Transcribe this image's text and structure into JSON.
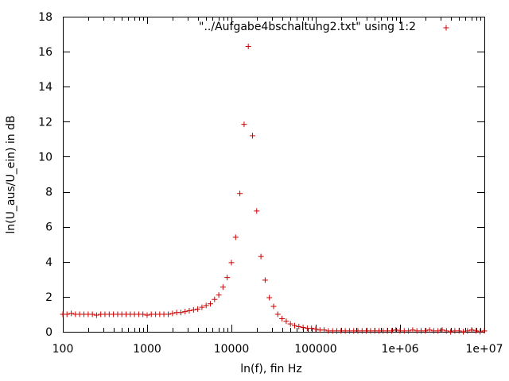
{
  "chart_data": {
    "type": "scatter",
    "title": "",
    "xlabel": "ln(f), fin Hz",
    "ylabel": "ln(U_aus/U_ein) in dB",
    "x_scale": "log",
    "xlim": [
      100,
      10000000
    ],
    "ylim": [
      0,
      18
    ],
    "x_ticks": [
      100,
      1000,
      10000,
      100000,
      1000000,
      10000000
    ],
    "x_tick_labels": [
      "100",
      "1000",
      "10000",
      "100000",
      "1e+06",
      "1e+07"
    ],
    "y_ticks": [
      0,
      2,
      4,
      6,
      8,
      10,
      12,
      14,
      16,
      18
    ],
    "y_tick_labels": [
      "0",
      "2",
      "4",
      "6",
      "8",
      "10",
      "12",
      "14",
      "16",
      "18"
    ],
    "grid": false,
    "legend_position": "top-right",
    "marker": "+",
    "series": [
      {
        "name": "\"../Aufgabe4bschaltung2.txt\" using 1:2",
        "color": "#cc0000",
        "points": [
          [
            100,
            1.0
          ],
          [
            112,
            1.0
          ],
          [
            126,
            1.05
          ],
          [
            141,
            1.0
          ],
          [
            158,
            1.0
          ],
          [
            178,
            1.0
          ],
          [
            200,
            1.0
          ],
          [
            224,
            1.0
          ],
          [
            251,
            0.95
          ],
          [
            282,
            1.0
          ],
          [
            316,
            1.0
          ],
          [
            355,
            1.0
          ],
          [
            398,
            1.0
          ],
          [
            447,
            1.0
          ],
          [
            501,
            1.0
          ],
          [
            562,
            1.0
          ],
          [
            631,
            1.0
          ],
          [
            708,
            1.0
          ],
          [
            794,
            1.0
          ],
          [
            891,
            1.0
          ],
          [
            1000,
            0.95
          ],
          [
            1120,
            1.0
          ],
          [
            1260,
            1.0
          ],
          [
            1410,
            1.0
          ],
          [
            1580,
            1.0
          ],
          [
            1780,
            1.0
          ],
          [
            2000,
            1.05
          ],
          [
            2240,
            1.1
          ],
          [
            2510,
            1.1
          ],
          [
            2820,
            1.15
          ],
          [
            3160,
            1.2
          ],
          [
            3550,
            1.25
          ],
          [
            3980,
            1.3
          ],
          [
            4470,
            1.4
          ],
          [
            5010,
            1.5
          ],
          [
            5620,
            1.6
          ],
          [
            6310,
            1.85
          ],
          [
            7080,
            2.1
          ],
          [
            7940,
            2.55
          ],
          [
            8910,
            3.1
          ],
          [
            10000,
            3.95
          ],
          [
            11220,
            5.4
          ],
          [
            12590,
            7.9
          ],
          [
            14130,
            11.85
          ],
          [
            15850,
            16.3
          ],
          [
            17780,
            11.2
          ],
          [
            19950,
            6.9
          ],
          [
            22390,
            4.3
          ],
          [
            25120,
            2.95
          ],
          [
            28180,
            1.95
          ],
          [
            31620,
            1.45
          ],
          [
            35480,
            1.0
          ],
          [
            39810,
            0.75
          ],
          [
            44670,
            0.6
          ],
          [
            50120,
            0.45
          ],
          [
            56230,
            0.35
          ],
          [
            63100,
            0.3
          ],
          [
            70790,
            0.25
          ],
          [
            79430,
            0.2
          ],
          [
            89130,
            0.2
          ],
          [
            100000,
            0.15
          ],
          [
            112200,
            0.1
          ],
          [
            125900,
            0.1
          ],
          [
            141300,
            0.05
          ],
          [
            158500,
            0.05
          ],
          [
            177800,
            0.05
          ],
          [
            199500,
            0.05
          ],
          [
            223900,
            0.05
          ],
          [
            251200,
            0.05
          ],
          [
            281800,
            0.05
          ],
          [
            316200,
            0.05
          ],
          [
            354800,
            0.05
          ],
          [
            398100,
            0.05
          ],
          [
            446700,
            0.05
          ],
          [
            501200,
            0.05
          ],
          [
            562300,
            0.05
          ],
          [
            631000,
            0.05
          ],
          [
            707900,
            0.05
          ],
          [
            794300,
            0.05
          ],
          [
            891300,
            0.1
          ],
          [
            1000000,
            0.05
          ],
          [
            1122000,
            0.05
          ],
          [
            1259000,
            0.05
          ],
          [
            1413000,
            0.1
          ],
          [
            1585000,
            0.05
          ],
          [
            1778000,
            0.05
          ],
          [
            1995000,
            0.05
          ],
          [
            2239000,
            0.1
          ],
          [
            2512000,
            0.05
          ],
          [
            2818000,
            0.05
          ],
          [
            3162000,
            0.1
          ],
          [
            3548000,
            0.05
          ],
          [
            3981000,
            0.0
          ],
          [
            4467000,
            0.05
          ],
          [
            5012000,
            0.05
          ],
          [
            5623000,
            0.0
          ],
          [
            6310000,
            0.05
          ],
          [
            7079000,
            0.1
          ],
          [
            7943000,
            0.05
          ],
          [
            8913000,
            0.0
          ],
          [
            10000000,
            0.05
          ]
        ]
      }
    ]
  }
}
